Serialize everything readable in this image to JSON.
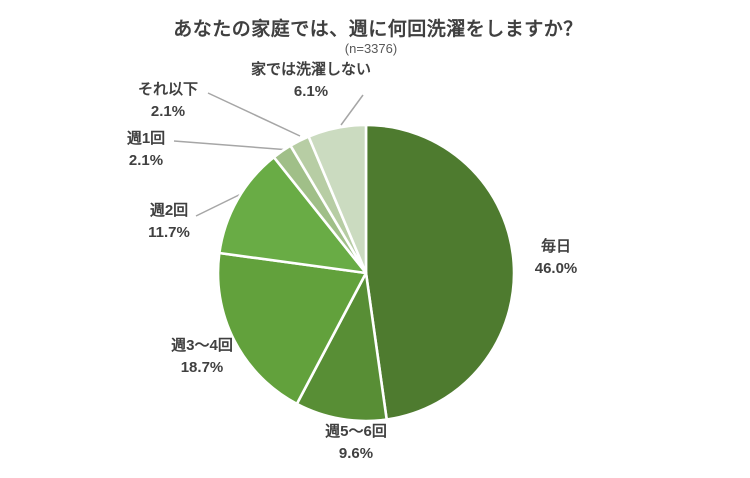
{
  "chart_data": {
    "type": "pie",
    "title": "あなたの家庭では、週に何回洗濯をしますか？",
    "sample_note": "(n=3376)",
    "direction": "clockwise",
    "start_angle_deg": 0,
    "legend": "none",
    "label_color": "#404040",
    "title_color": "#404040",
    "leader_line_color": "#A6A6A6",
    "slice_gap_color": "#FFFFFF",
    "slices": [
      {
        "label": "毎日",
        "value": 46.0,
        "pct_label": "46.0%",
        "color": "#4E7B2F"
      },
      {
        "label": "週5～6回",
        "value": 9.6,
        "pct_label": "9.6%",
        "color": "#588E35"
      },
      {
        "label": "週3～4回",
        "value": 18.7,
        "pct_label": "18.7%",
        "color": "#62A13C"
      },
      {
        "label": "週2回",
        "value": 11.7,
        "pct_label": "11.7%",
        "color": "#69AC45"
      },
      {
        "label": "週1回",
        "value": 2.1,
        "pct_label": "2.1%",
        "color": "#A0BF88"
      },
      {
        "label": "それ以下",
        "value": 2.1,
        "pct_label": "2.1%",
        "color": "#B7CDA4"
      },
      {
        "label": "家では洗濯しない",
        "value": 6.1,
        "pct_label": "6.1%",
        "color": "#CBDBC0"
      }
    ]
  }
}
